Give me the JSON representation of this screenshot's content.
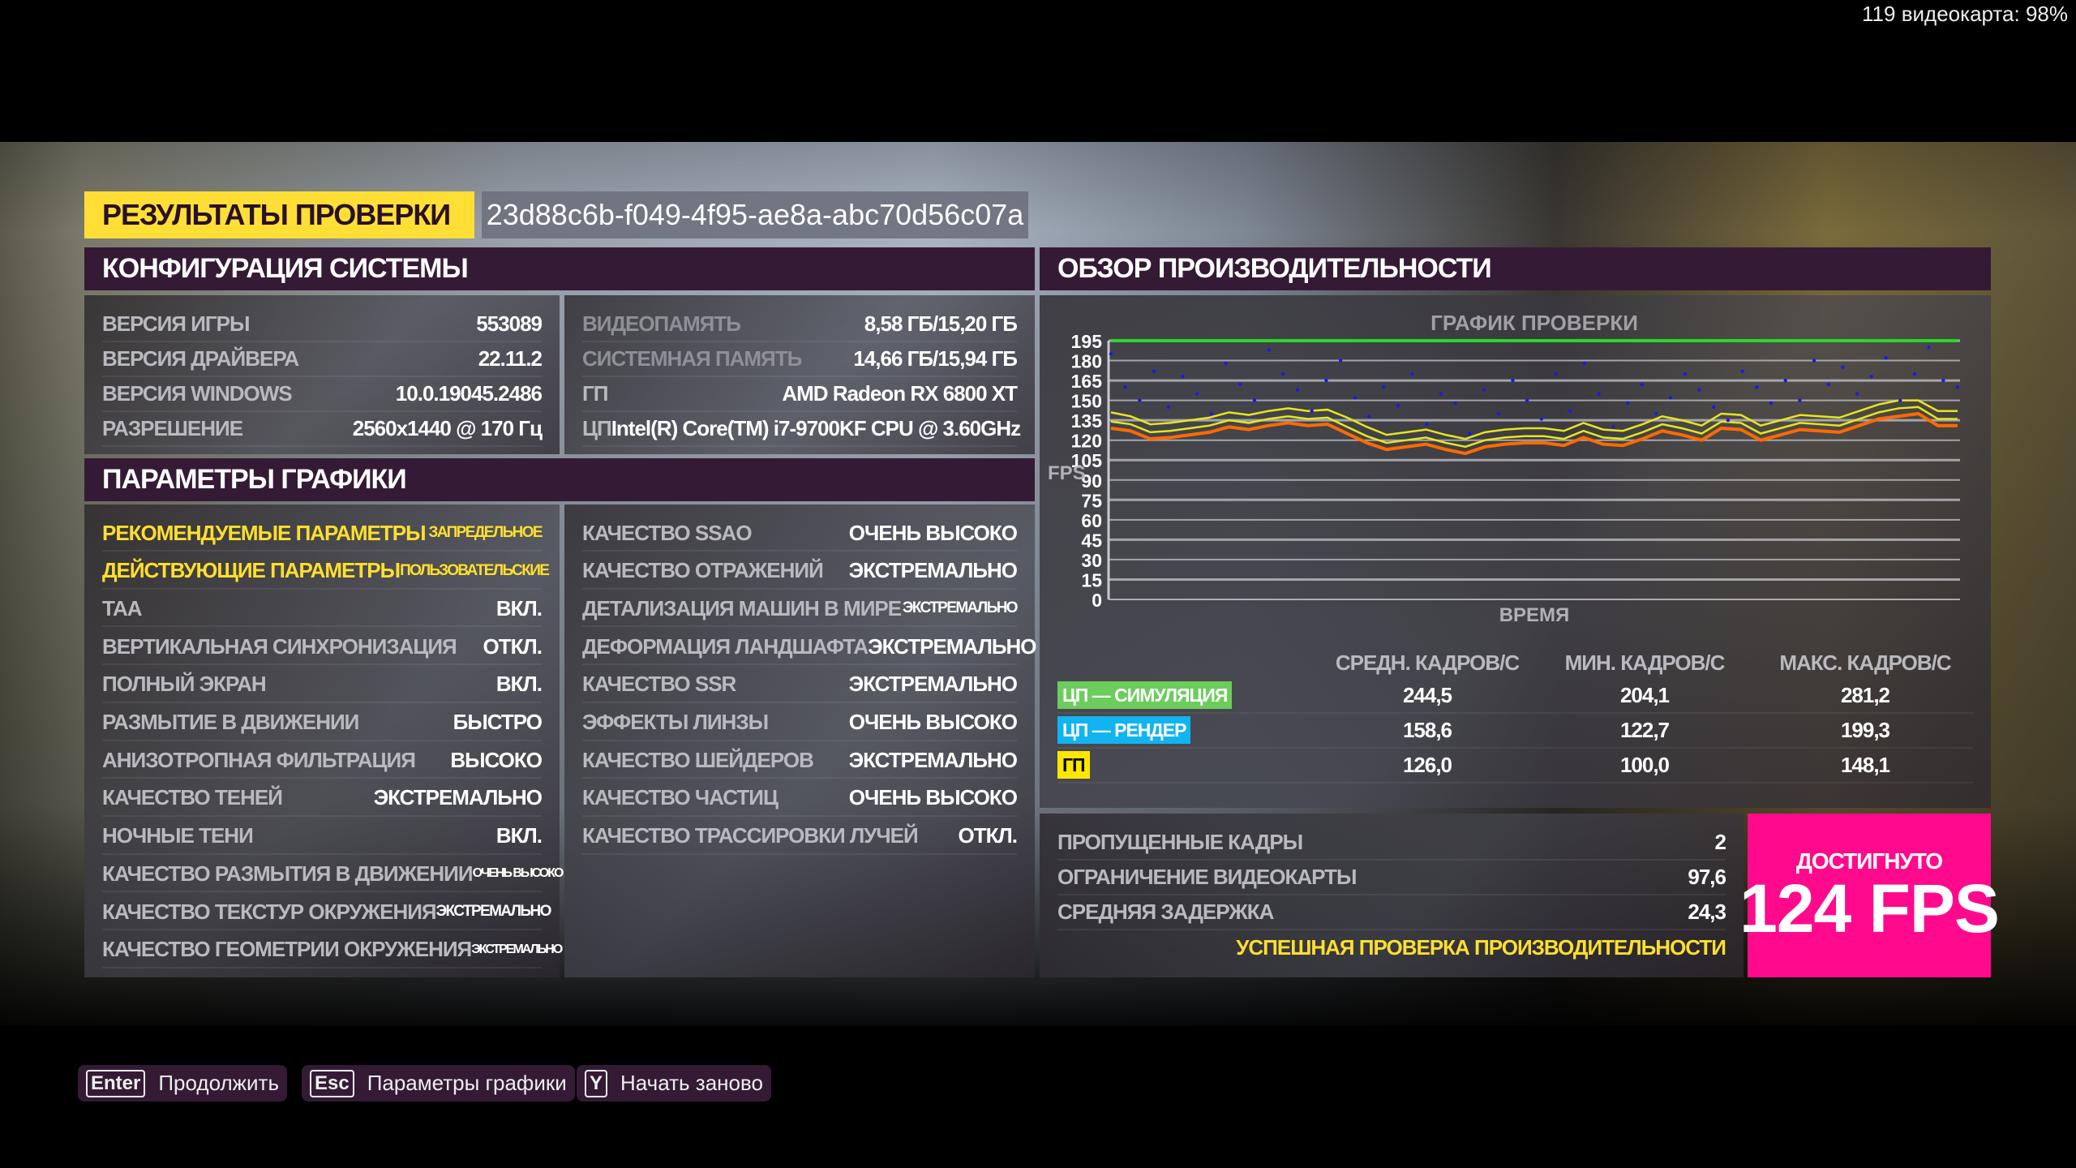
{
  "overlay": {
    "text": "119 видеокарта: 98%"
  },
  "title": {
    "label": "РЕЗУЛЬТАТЫ ПРОВЕРКИ",
    "id": "23d88c6b-f049-4f95-ae8a-abc70d56c07a"
  },
  "system": {
    "header": "КОНФИГУРАЦИЯ СИСТЕМЫ",
    "left": [
      {
        "label": "ВЕРСИЯ ИГРЫ",
        "value": "553089"
      },
      {
        "label": "ВЕРСИЯ ДРАЙВЕРА",
        "value": "22.11.2"
      },
      {
        "label": "ВЕРСИЯ WINDOWS",
        "value": "10.0.19045.2486"
      },
      {
        "label": "РАЗРЕШЕНИЕ",
        "value": "2560x1440 @ 170 Гц"
      }
    ],
    "right": [
      {
        "label": "ВИДЕОПАМЯТЬ",
        "value": "8,58 ГБ/15,20 ГБ"
      },
      {
        "label": "СИСТЕМНАЯ ПАМЯТЬ",
        "value": "14,66 ГБ/15,94 ГБ"
      },
      {
        "label": "ГП",
        "value": "AMD Radeon RX 6800 XT"
      },
      {
        "label": "ЦП",
        "value": "Intel(R) Core(TM) i7-9700KF CPU @ 3.60GHz"
      }
    ]
  },
  "graphics": {
    "header": "ПАРАМЕТРЫ ГРАФИКИ",
    "left": [
      {
        "label": "РЕКОМЕНДУЕМЫЕ ПАРАМЕТРЫ",
        "value": "ЗАПРЕДЕЛЬНОЕ"
      },
      {
        "label": "ДЕЙСТВУЮЩИЕ ПАРАМЕТРЫ",
        "value": "ПОЛЬЗОВАТЕЛЬСКИЕ"
      },
      {
        "label": "TAA",
        "value": "ВКЛ."
      },
      {
        "label": "ВЕРТИКАЛЬНАЯ СИНХРОНИЗАЦИЯ",
        "value": "ОТКЛ."
      },
      {
        "label": "ПОЛНЫЙ ЭКРАН",
        "value": "ВКЛ."
      },
      {
        "label": "РАЗМЫТИЕ В ДВИЖЕНИИ",
        "value": "БЫСТРО"
      },
      {
        "label": "АНИЗОТРОПНАЯ ФИЛЬТРАЦИЯ",
        "value": "ВЫСОКО"
      },
      {
        "label": "КАЧЕСТВО ТЕНЕЙ",
        "value": "ЭКСТРЕМАЛЬНО"
      },
      {
        "label": "НОЧНЫЕ ТЕНИ",
        "value": "ВКЛ."
      },
      {
        "label": "КАЧЕСТВО РАЗМЫТИЯ В ДВИЖЕНИИ",
        "value": "ОЧЕНЬ ВЫСОКО"
      },
      {
        "label": "КАЧЕСТВО ТЕКСТУР ОКРУЖЕНИЯ",
        "value": "ЭКСТРЕМАЛЬНО"
      },
      {
        "label": "КАЧЕСТВО ГЕОМЕТРИИ ОКРУЖЕНИЯ",
        "value": "ЭКСТРЕМАЛЬНО"
      }
    ],
    "right": [
      {
        "label": "КАЧЕСТВО SSAO",
        "value": "ОЧЕНЬ ВЫСОКО"
      },
      {
        "label": "КАЧЕСТВО ОТРАЖЕНИЙ",
        "value": "ЭКСТРЕМАЛЬНО"
      },
      {
        "label": "ДЕТАЛИЗАЦИЯ МАШИН В МИРЕ",
        "value": "ЭКСТРЕМАЛЬНО"
      },
      {
        "label": "ДЕФОРМАЦИЯ ЛАНДШАФТА",
        "value": "ЭКСТРЕМАЛЬНО"
      },
      {
        "label": "КАЧЕСТВО SSR",
        "value": "ЭКСТРЕМАЛЬНО"
      },
      {
        "label": "ЭФФЕКТЫ ЛИНЗЫ",
        "value": "ОЧЕНЬ ВЫСОКО"
      },
      {
        "label": "КАЧЕСТВО ШЕЙДЕРОВ",
        "value": "ЭКСТРЕМАЛЬНО"
      },
      {
        "label": "КАЧЕСТВО ЧАСТИЦ",
        "value": "ОЧЕНЬ ВЫСОКО"
      },
      {
        "label": "КАЧЕСТВО ТРАССИРОВКИ ЛУЧЕЙ",
        "value": "ОТКЛ."
      }
    ]
  },
  "performance": {
    "header": "ОБЗОР ПРОИЗВОДИТЕЛЬНОСТИ",
    "table": {
      "columns": [
        "СРЕДН. КАДРОВ/С",
        "МИН. КАДРОВ/С",
        "МАКС. КАДРОВ/С"
      ],
      "rows": [
        {
          "label": "ЦП — СИМУЛЯЦИЯ",
          "color": "#6ccc5c",
          "avg": "244,5",
          "min": "204,1",
          "max": "281,2"
        },
        {
          "label": "ЦП — РЕНДЕР",
          "color": "#12b4f0",
          "avg": "158,6",
          "min": "122,7",
          "max": "199,3"
        },
        {
          "label": "ГП",
          "color": "#ffe600",
          "avg": "126,0",
          "min": "100,0",
          "max": "148,1"
        }
      ]
    },
    "stats": [
      {
        "label": "ПРОПУЩЕННЫЕ КАДРЫ",
        "value": "2"
      },
      {
        "label": "ОГРАНИЧЕНИЕ ВИДЕОКАРТЫ",
        "value": "97,6"
      },
      {
        "label": "СРЕДНЯЯ ЗАДЕРЖКА",
        "value": "24,3"
      }
    ],
    "success": "УСПЕШНАЯ ПРОВЕРКА ПРОИЗВОДИТЕЛЬНОСТИ",
    "achieved": {
      "label": "ДОСТИГНУТО",
      "value": "124 FPS",
      "color": "#ff0a8c"
    }
  },
  "chart_data": {
    "type": "line",
    "title": "ГРАФИК ПРОВЕРКИ",
    "xlabel": "ВРЕМЯ",
    "ylabel": "FPS",
    "ylim": [
      0,
      195
    ],
    "yticks": [
      "0",
      "15",
      "30",
      "45",
      "60",
      "75",
      "90",
      "105",
      "120",
      "135",
      "150",
      "165",
      "180",
      "195"
    ],
    "grid": true,
    "series": [
      {
        "color": "#2bd62b",
        "kind": "line",
        "values": [
          195,
          195,
          195,
          195,
          195,
          195,
          195,
          195,
          195,
          195
        ]
      },
      {
        "color": "#e6e61e",
        "kind": "line",
        "values": [
          141,
          138,
          132,
          133,
          135,
          137,
          141,
          139,
          142,
          144,
          142,
          143,
          137,
          130,
          124,
          126,
          128,
          124,
          121,
          126,
          128,
          129,
          129,
          127,
          133,
          128,
          127,
          132,
          138,
          135,
          131,
          140,
          139,
          131,
          135,
          139,
          138,
          137,
          142,
          147,
          150,
          150,
          142,
          142
        ]
      },
      {
        "color": "#e6e61e",
        "kind": "line",
        "values": [
          134,
          132,
          126,
          127,
          129,
          131,
          135,
          133,
          136,
          138,
          136,
          137,
          130,
          123,
          118,
          120,
          122,
          118,
          115,
          120,
          122,
          123,
          123,
          121,
          127,
          122,
          121,
          126,
          132,
          129,
          125,
          134,
          133,
          125,
          129,
          133,
          132,
          131,
          136,
          141,
          144,
          145,
          136,
          136
        ]
      },
      {
        "color": "#ff6a00",
        "kind": "line",
        "values": [
          129,
          127,
          121,
          122,
          124,
          126,
          130,
          128,
          131,
          133,
          131,
          132,
          125,
          118,
          113,
          115,
          117,
          113,
          110,
          115,
          117,
          118,
          118,
          116,
          122,
          117,
          116,
          121,
          127,
          124,
          120,
          129,
          128,
          120,
          124,
          128,
          127,
          126,
          131,
          136,
          138,
          140,
          131,
          131
        ]
      },
      {
        "color": "#1a1ae6",
        "kind": "scatter",
        "values": [
          185,
          160,
          150,
          172,
          145,
          168,
          155,
          140,
          178,
          162,
          150,
          188,
          170,
          158,
          142,
          165,
          180,
          152,
          138,
          160,
          146,
          170,
          132,
          155,
          148,
          125,
          158,
          140,
          165,
          150,
          136,
          170,
          142,
          178,
          155,
          130,
          148,
          162,
          140,
          152,
          170,
          158,
          145,
          135,
          172,
          160,
          148,
          165,
          150,
          180,
          162,
          175,
          155,
          168,
          182,
          150,
          170,
          190,
          165,
          160
        ]
      }
    ]
  },
  "footer": [
    {
      "key": "Enter",
      "label": "Продолжить"
    },
    {
      "key": "Esc",
      "label": "Параметры графики"
    },
    {
      "key": "Y",
      "label": "Начать заново"
    }
  ]
}
